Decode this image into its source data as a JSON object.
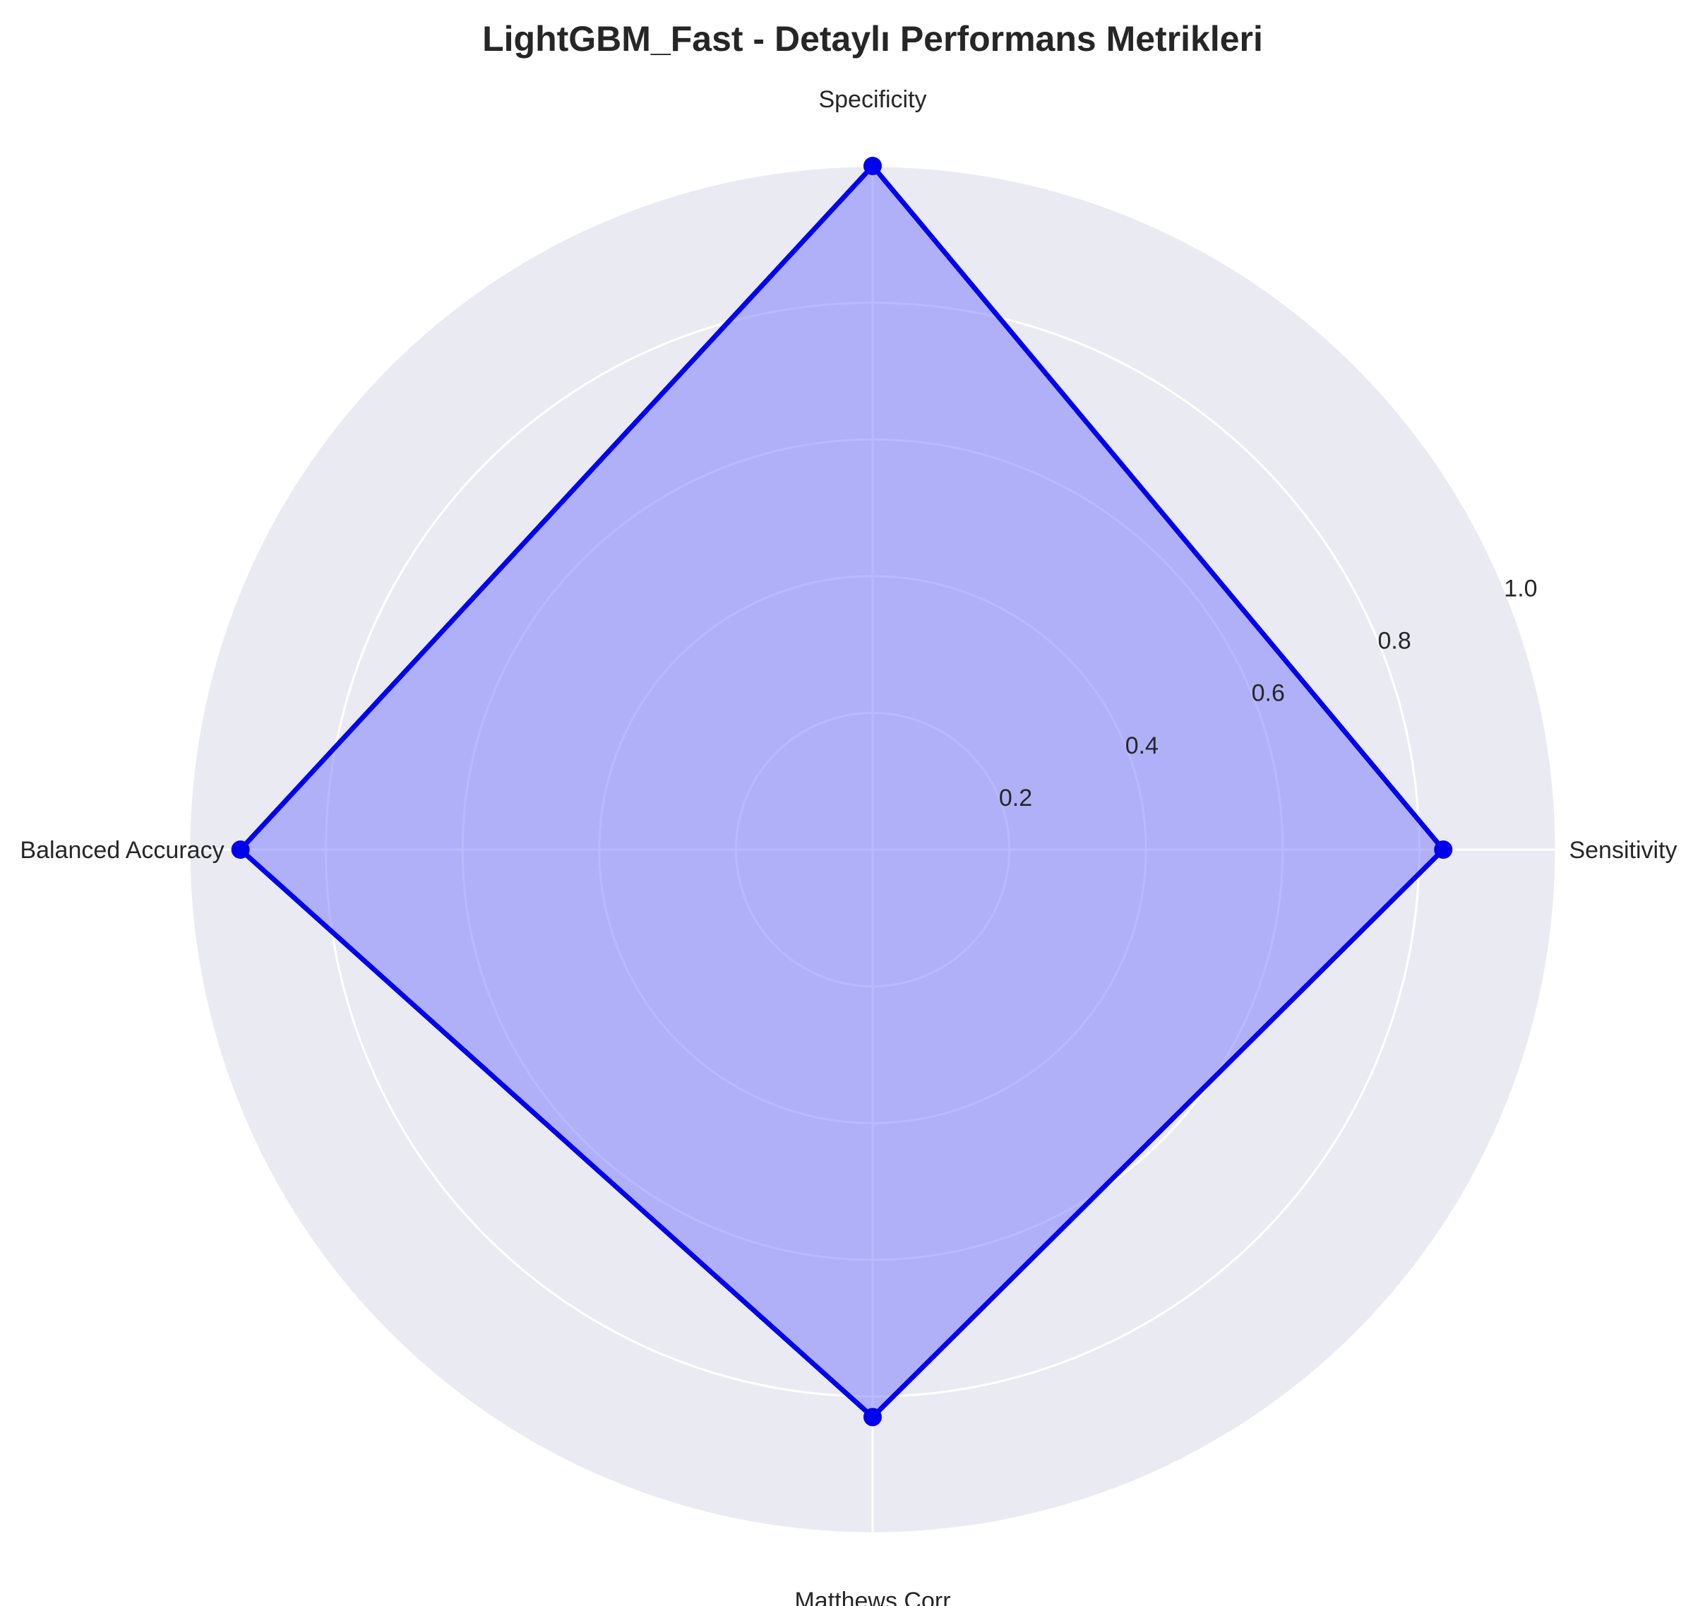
{
  "chart_data": {
    "type": "radar",
    "title": "LightGBM_Fast - Detaylı Performans Metrikleri",
    "categories": [
      "Sensitivity",
      "Specificity",
      "Balanced Accuracy",
      "Matthews Corr"
    ],
    "series": [
      {
        "values": [
          0.835,
          1.0,
          0.925,
          0.83
        ]
      }
    ],
    "rlim": [
      0,
      1.0
    ],
    "rticks": [
      0.2,
      0.4,
      0.6,
      0.8,
      1.0
    ],
    "rtick_labels": [
      "0.2",
      "0.4",
      "0.6",
      "0.8",
      "1.0"
    ],
    "grid": true,
    "colors": {
      "line": "#0000ee",
      "fill": "#8080ff",
      "marker": "#0000ee",
      "background": "#eaeaf2",
      "grid": "#ffffff"
    }
  }
}
